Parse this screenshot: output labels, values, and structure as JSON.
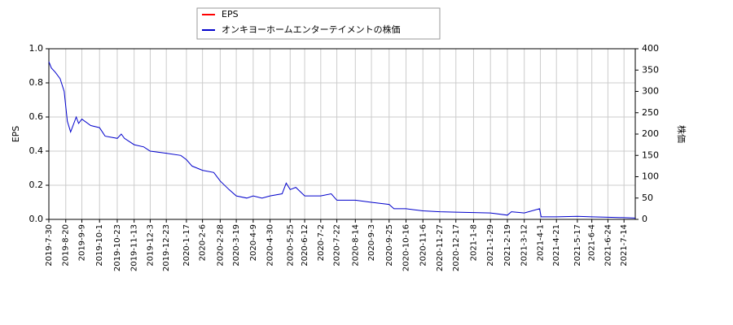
{
  "chart_data": {
    "type": "line",
    "ylabel": "EPS",
    "y2label": "株価",
    "x": [
      "2019-7-30",
      "2019-8-2",
      "2019-8-7",
      "2019-8-13",
      "2019-8-18",
      "2019-8-22",
      "2019-8-26",
      "2019-9-2",
      "2019-9-5",
      "2019-9-9",
      "2019-9-20",
      "2019-10-1",
      "2019-10-8",
      "2019-10-23",
      "2019-10-28",
      "2019-11-1",
      "2019-11-13",
      "2019-11-25",
      "2019-12-3",
      "2019-12-23",
      "2020-1-10",
      "2020-1-17",
      "2020-1-24",
      "2020-2-6",
      "2020-2-20",
      "2020-2-28",
      "2020-3-10",
      "2020-3-19",
      "2020-4-1",
      "2020-4-9",
      "2020-4-20",
      "2020-4-30",
      "2020-5-15",
      "2020-5-20",
      "2020-5-25",
      "2020-6-1",
      "2020-6-12",
      "2020-7-2",
      "2020-7-15",
      "2020-7-22",
      "2020-8-14",
      "2020-9-3",
      "2020-9-25",
      "2020-10-1",
      "2020-10-16",
      "2020-11-6",
      "2020-11-27",
      "2020-12-17",
      "2021-1-8",
      "2021-1-29",
      "2021-2-19",
      "2021-2-24",
      "2021-3-12",
      "2021-3-31",
      "2021-4-2",
      "2021-4-21",
      "2021-5-17",
      "2021-6-4",
      "2021-6-24",
      "2021-7-14",
      "2021-7-28"
    ],
    "series": [
      {
        "name": "EPS",
        "color": "#ff0000",
        "values": [
          null,
          null,
          null,
          null,
          null,
          null,
          null,
          null,
          null,
          null,
          null,
          null,
          null,
          null,
          null,
          null,
          null,
          null,
          null,
          null,
          null,
          null,
          null,
          null,
          null,
          null,
          null,
          null,
          null,
          null,
          null,
          null,
          null,
          null,
          null,
          null,
          null,
          null,
          null,
          null,
          null,
          null,
          null,
          null,
          null,
          null,
          null,
          null,
          null,
          null,
          null,
          null,
          null,
          null,
          null,
          null,
          null,
          null,
          null,
          null,
          null
        ]
      },
      {
        "name": "オンキヨーホームエンターテイメントの株価",
        "color": "#0000cc",
        "axis": "y2",
        "values": [
          370,
          355,
          345,
          330,
          300,
          230,
          205,
          240,
          225,
          235,
          220,
          215,
          195,
          190,
          200,
          190,
          175,
          170,
          160,
          155,
          150,
          140,
          125,
          115,
          110,
          90,
          70,
          55,
          50,
          55,
          50,
          55,
          60,
          85,
          70,
          75,
          55,
          55,
          60,
          45,
          45,
          40,
          35,
          25,
          25,
          20,
          18,
          17,
          16,
          15,
          10,
          18,
          15,
          25,
          6,
          6,
          7,
          6,
          5,
          4,
          3
        ]
      }
    ],
    "xlim": [
      "2019-7-30",
      "2021-7-28"
    ],
    "xticks": [
      "2019-7-30",
      "2019-8-20",
      "2019-9-9",
      "2019-10-1",
      "2019-10-23",
      "2019-11-13",
      "2019-12-3",
      "2019-12-23",
      "2020-1-17",
      "2020-2-6",
      "2020-2-28",
      "2020-3-19",
      "2020-4-9",
      "2020-4-30",
      "2020-5-25",
      "2020-6-12",
      "2020-7-2",
      "2020-7-22",
      "2020-8-14",
      "2020-9-3",
      "2020-9-25",
      "2020-10-16",
      "2020-11-6",
      "2020-11-27",
      "2020-12-17",
      "2021-1-8",
      "2021-1-29",
      "2021-2-19",
      "2021-3-12",
      "2021-4-1",
      "2021-4-21",
      "2021-5-17",
      "2021-6-4",
      "2021-6-24",
      "2021-7-14"
    ],
    "ylim": [
      0,
      1
    ],
    "yticks": [
      {
        "value": 0,
        "label": "0.0"
      },
      0.2,
      0.4,
      0.6,
      0.8,
      {
        "value": 1,
        "label": "1.0"
      }
    ],
    "y2lim": [
      0,
      400
    ],
    "y2ticks": [
      0,
      50,
      100,
      150,
      200,
      250,
      300,
      350,
      400
    ],
    "grid": true,
    "legend": "top"
  }
}
